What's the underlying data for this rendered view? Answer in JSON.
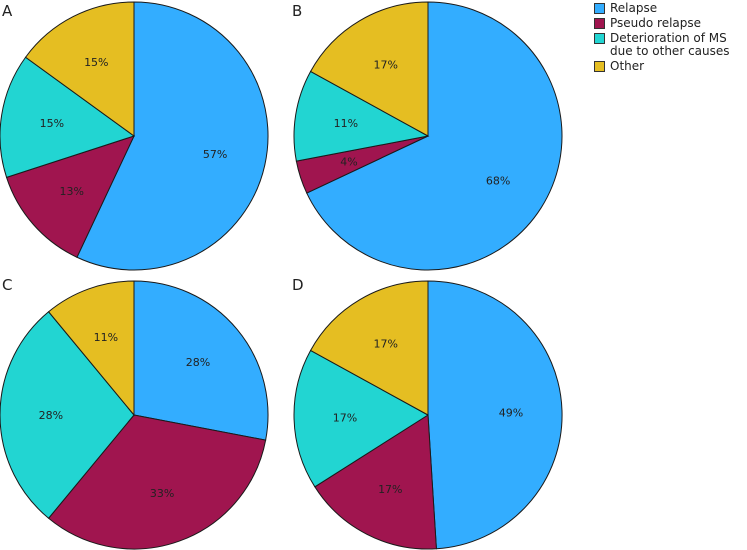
{
  "colors": {
    "relapse": "#33adff",
    "pseudo_relapse": "#a0154f",
    "deterioration": "#22d5d2",
    "other": "#e5be22",
    "stroke": "#1a1a1a"
  },
  "legend": [
    {
      "key": "relapse",
      "label": "Relapse"
    },
    {
      "key": "pseudo_relapse",
      "label": "Pseudo relapse"
    },
    {
      "key": "deterioration",
      "label": "Deterioration of MS due to other causes"
    },
    {
      "key": "other",
      "label": "Other"
    }
  ],
  "chart_data": [
    {
      "type": "pie",
      "panel": "A",
      "slices": [
        {
          "series": "relapse",
          "value": 57,
          "label": "57%"
        },
        {
          "series": "pseudo_relapse",
          "value": 13,
          "label": "13%"
        },
        {
          "series": "deterioration",
          "value": 15,
          "label": "15%"
        },
        {
          "series": "other",
          "value": 15,
          "label": "15%"
        }
      ]
    },
    {
      "type": "pie",
      "panel": "B",
      "slices": [
        {
          "series": "relapse",
          "value": 68,
          "label": "68%"
        },
        {
          "series": "pseudo_relapse",
          "value": 4,
          "label": "4%"
        },
        {
          "series": "deterioration",
          "value": 11,
          "label": "11%"
        },
        {
          "series": "other",
          "value": 17,
          "label": "17%"
        }
      ]
    },
    {
      "type": "pie",
      "panel": "C",
      "slices": [
        {
          "series": "relapse",
          "value": 28,
          "label": "28%"
        },
        {
          "series": "pseudo_relapse",
          "value": 33,
          "label": "33%"
        },
        {
          "series": "deterioration",
          "value": 28,
          "label": "28%"
        },
        {
          "series": "other",
          "value": 11,
          "label": "11%"
        }
      ]
    },
    {
      "type": "pie",
      "panel": "D",
      "slices": [
        {
          "series": "relapse",
          "value": 49,
          "label": "49%"
        },
        {
          "series": "pseudo_relapse",
          "value": 17,
          "label": "17%"
        },
        {
          "series": "deterioration",
          "value": 17,
          "label": "17%"
        },
        {
          "series": "other",
          "value": 17,
          "label": "17%"
        }
      ]
    }
  ]
}
